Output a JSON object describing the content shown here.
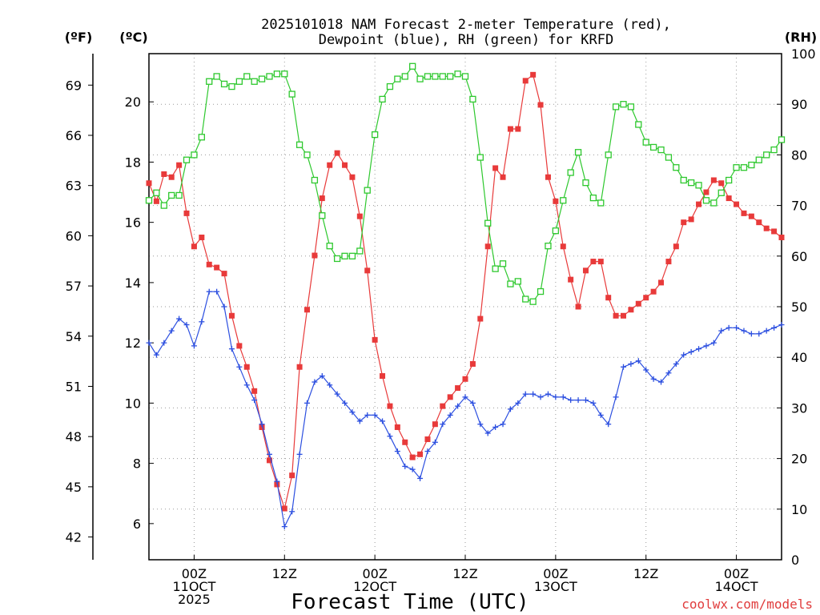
{
  "chart_data": {
    "type": "line",
    "title_lines": [
      "2025101018 NAM Forecast 2-meter Temperature (red),",
      "Dewpoint (blue), RH (green) for KRFD"
    ],
    "xlabel": "Forecast Time (UTC)",
    "credit": "coolwx.com/models",
    "x_unit": "hours from 2025-10-11 00Z",
    "x_range": [
      -6,
      78
    ],
    "x_ticks": [
      {
        "x": 0,
        "lines": [
          "00Z",
          "11OCT",
          "2025"
        ]
      },
      {
        "x": 12,
        "lines": [
          "12Z"
        ]
      },
      {
        "x": 24,
        "lines": [
          "00Z",
          "12OCT"
        ]
      },
      {
        "x": 36,
        "lines": [
          "12Z"
        ]
      },
      {
        "x": 48,
        "lines": [
          "00Z",
          "13OCT"
        ]
      },
      {
        "x": 60,
        "lines": [
          "12Z"
        ]
      },
      {
        "x": 72,
        "lines": [
          "00Z",
          "14OCT"
        ]
      }
    ],
    "left_axis_f": {
      "unit_label": "(ºF)",
      "ticks": [
        42,
        45,
        48,
        51,
        54,
        57,
        60,
        63,
        66,
        69
      ]
    },
    "left_axis_c": {
      "unit_label": "(ºC)",
      "ticks": [
        6,
        8,
        10,
        12,
        14,
        16,
        18,
        20
      ],
      "range": [
        4.8,
        21.6
      ]
    },
    "right_axis_rh": {
      "unit_label": "(RH)",
      "ticks": [
        0,
        10,
        20,
        30,
        40,
        50,
        60,
        70,
        80,
        90,
        100
      ],
      "range": [
        0,
        100
      ]
    },
    "grid": true,
    "series": [
      {
        "name": "Temperature",
        "color": "#e83a3a",
        "marker": "filled-square",
        "axis": "celsius",
        "points": [
          [
            -6,
            17.3
          ],
          [
            -5,
            16.7
          ],
          [
            -4,
            17.6
          ],
          [
            -3,
            17.5
          ],
          [
            -2,
            17.9
          ],
          [
            -1,
            16.3
          ],
          [
            0,
            15.2
          ],
          [
            1,
            15.5
          ],
          [
            2,
            14.6
          ],
          [
            3,
            14.5
          ],
          [
            4,
            14.3
          ],
          [
            5,
            12.9
          ],
          [
            6,
            11.9
          ],
          [
            7,
            11.2
          ],
          [
            8,
            10.4
          ],
          [
            9,
            9.2
          ],
          [
            10,
            8.1
          ],
          [
            11,
            7.3
          ],
          [
            12,
            6.5
          ],
          [
            13,
            7.6
          ],
          [
            14,
            11.2
          ],
          [
            15,
            13.1
          ],
          [
            16,
            14.9
          ],
          [
            17,
            16.8
          ],
          [
            18,
            17.9
          ],
          [
            19,
            18.3
          ],
          [
            20,
            17.9
          ],
          [
            21,
            17.5
          ],
          [
            22,
            16.2
          ],
          [
            23,
            14.4
          ],
          [
            24,
            12.1
          ],
          [
            25,
            10.9
          ],
          [
            26,
            9.9
          ],
          [
            27,
            9.2
          ],
          [
            28,
            8.7
          ],
          [
            29,
            8.2
          ],
          [
            30,
            8.3
          ],
          [
            31,
            8.8
          ],
          [
            32,
            9.3
          ],
          [
            33,
            9.9
          ],
          [
            34,
            10.2
          ],
          [
            35,
            10.5
          ],
          [
            36,
            10.8
          ],
          [
            37,
            11.3
          ],
          [
            38,
            12.8
          ],
          [
            39,
            15.2
          ],
          [
            40,
            17.8
          ],
          [
            41,
            17.5
          ],
          [
            42,
            19.1
          ],
          [
            43,
            19.1
          ],
          [
            44,
            20.7
          ],
          [
            45,
            20.9
          ],
          [
            46,
            19.9
          ],
          [
            47,
            17.5
          ],
          [
            48,
            16.7
          ],
          [
            49,
            15.2
          ],
          [
            50,
            14.1
          ],
          [
            51,
            13.2
          ],
          [
            52,
            14.4
          ],
          [
            53,
            14.7
          ],
          [
            54,
            14.7
          ],
          [
            55,
            13.5
          ],
          [
            56,
            12.9
          ],
          [
            57,
            12.9
          ],
          [
            58,
            13.1
          ],
          [
            59,
            13.3
          ],
          [
            60,
            13.5
          ],
          [
            61,
            13.7
          ],
          [
            62,
            14.0
          ],
          [
            63,
            14.7
          ],
          [
            64,
            15.2
          ],
          [
            65,
            16.0
          ],
          [
            66,
            16.1
          ],
          [
            67,
            16.6
          ],
          [
            68,
            17.0
          ],
          [
            69,
            17.4
          ],
          [
            70,
            17.3
          ],
          [
            71,
            16.8
          ],
          [
            72,
            16.6
          ],
          [
            73,
            16.3
          ],
          [
            74,
            16.2
          ],
          [
            75,
            16.0
          ],
          [
            76,
            15.8
          ],
          [
            77,
            15.7
          ],
          [
            78,
            15.5
          ]
        ]
      },
      {
        "name": "Dewpoint",
        "color": "#2c4fe0",
        "marker": "plus",
        "axis": "celsius",
        "points": [
          [
            -6,
            12.0
          ],
          [
            -5,
            11.6
          ],
          [
            -4,
            12.0
          ],
          [
            -3,
            12.4
          ],
          [
            -2,
            12.8
          ],
          [
            -1,
            12.6
          ],
          [
            0,
            11.9
          ],
          [
            1,
            12.7
          ],
          [
            2,
            13.7
          ],
          [
            3,
            13.7
          ],
          [
            4,
            13.2
          ],
          [
            5,
            11.8
          ],
          [
            6,
            11.2
          ],
          [
            7,
            10.6
          ],
          [
            8,
            10.1
          ],
          [
            9,
            9.3
          ],
          [
            10,
            8.3
          ],
          [
            11,
            7.4
          ],
          [
            12,
            5.9
          ],
          [
            13,
            6.4
          ],
          [
            14,
            8.3
          ],
          [
            15,
            10.0
          ],
          [
            16,
            10.7
          ],
          [
            17,
            10.9
          ],
          [
            18,
            10.6
          ],
          [
            19,
            10.3
          ],
          [
            20,
            10.0
          ],
          [
            21,
            9.7
          ],
          [
            22,
            9.4
          ],
          [
            23,
            9.6
          ],
          [
            24,
            9.6
          ],
          [
            25,
            9.4
          ],
          [
            26,
            8.9
          ],
          [
            27,
            8.4
          ],
          [
            28,
            7.9
          ],
          [
            29,
            7.8
          ],
          [
            30,
            7.5
          ],
          [
            31,
            8.4
          ],
          [
            32,
            8.7
          ],
          [
            33,
            9.3
          ],
          [
            34,
            9.6
          ],
          [
            35,
            9.9
          ],
          [
            36,
            10.2
          ],
          [
            37,
            10.0
          ],
          [
            38,
            9.3
          ],
          [
            39,
            9.0
          ],
          [
            40,
            9.2
          ],
          [
            41,
            9.3
          ],
          [
            42,
            9.8
          ],
          [
            43,
            10.0
          ],
          [
            44,
            10.3
          ],
          [
            45,
            10.3
          ],
          [
            46,
            10.2
          ],
          [
            47,
            10.3
          ],
          [
            48,
            10.2
          ],
          [
            49,
            10.2
          ],
          [
            50,
            10.1
          ],
          [
            51,
            10.1
          ],
          [
            52,
            10.1
          ],
          [
            53,
            10.0
          ],
          [
            54,
            9.6
          ],
          [
            55,
            9.3
          ],
          [
            56,
            10.2
          ],
          [
            57,
            11.2
          ],
          [
            58,
            11.3
          ],
          [
            59,
            11.4
          ],
          [
            60,
            11.1
          ],
          [
            61,
            10.8
          ],
          [
            62,
            10.7
          ],
          [
            63,
            11.0
          ],
          [
            64,
            11.3
          ],
          [
            65,
            11.6
          ],
          [
            66,
            11.7
          ],
          [
            67,
            11.8
          ],
          [
            68,
            11.9
          ],
          [
            69,
            12.0
          ],
          [
            70,
            12.4
          ],
          [
            71,
            12.5
          ],
          [
            72,
            12.5
          ],
          [
            73,
            12.4
          ],
          [
            74,
            12.3
          ],
          [
            75,
            12.3
          ],
          [
            76,
            12.4
          ],
          [
            77,
            12.5
          ],
          [
            78,
            12.6
          ]
        ]
      },
      {
        "name": "RH",
        "color": "#2ec82e",
        "marker": "open-square",
        "axis": "rh",
        "points": [
          [
            -6,
            71
          ],
          [
            -5,
            72.5
          ],
          [
            -4,
            70
          ],
          [
            -3,
            72
          ],
          [
            -2,
            72
          ],
          [
            -1,
            79
          ],
          [
            0,
            80
          ],
          [
            1,
            83.5
          ],
          [
            2,
            94.5
          ],
          [
            3,
            95.5
          ],
          [
            4,
            94
          ],
          [
            5,
            93.5
          ],
          [
            6,
            94.5
          ],
          [
            7,
            95.5
          ],
          [
            8,
            94.5
          ],
          [
            9,
            95
          ],
          [
            10,
            95.5
          ],
          [
            11,
            96
          ],
          [
            12,
            96
          ],
          [
            13,
            92
          ],
          [
            14,
            82
          ],
          [
            15,
            80
          ],
          [
            16,
            75
          ],
          [
            17,
            68
          ],
          [
            18,
            62
          ],
          [
            19,
            59.5
          ],
          [
            20,
            60
          ],
          [
            21,
            60
          ],
          [
            22,
            61
          ],
          [
            23,
            73
          ],
          [
            24,
            84
          ],
          [
            25,
            91
          ],
          [
            26,
            93.5
          ],
          [
            27,
            95
          ],
          [
            28,
            95.5
          ],
          [
            29,
            97.5
          ],
          [
            30,
            95
          ],
          [
            31,
            95.5
          ],
          [
            32,
            95.5
          ],
          [
            33,
            95.5
          ],
          [
            34,
            95.5
          ],
          [
            35,
            96
          ],
          [
            36,
            95.5
          ],
          [
            37,
            91
          ],
          [
            38,
            79.5
          ],
          [
            39,
            66.5
          ],
          [
            40,
            57.5
          ],
          [
            41,
            58.5
          ],
          [
            42,
            54.5
          ],
          [
            43,
            55
          ],
          [
            44,
            51.5
          ],
          [
            45,
            51
          ],
          [
            46,
            53
          ],
          [
            47,
            62
          ],
          [
            48,
            65
          ],
          [
            49,
            71
          ],
          [
            50,
            76.5
          ],
          [
            51,
            80.5
          ],
          [
            52,
            74.5
          ],
          [
            53,
            71.5
          ],
          [
            54,
            70.5
          ],
          [
            55,
            80
          ],
          [
            56,
            89.5
          ],
          [
            57,
            90
          ],
          [
            58,
            89.5
          ],
          [
            59,
            86
          ],
          [
            60,
            82.5
          ],
          [
            61,
            81.5
          ],
          [
            62,
            81
          ],
          [
            63,
            79.5
          ],
          [
            64,
            77.5
          ],
          [
            65,
            75
          ],
          [
            66,
            74.5
          ],
          [
            67,
            74
          ],
          [
            68,
            71
          ],
          [
            69,
            70.5
          ],
          [
            70,
            72.5
          ],
          [
            71,
            75
          ],
          [
            72,
            77.5
          ],
          [
            73,
            77.5
          ],
          [
            74,
            78
          ],
          [
            75,
            79
          ],
          [
            76,
            80
          ],
          [
            77,
            81
          ],
          [
            78,
            83
          ]
        ]
      }
    ]
  }
}
